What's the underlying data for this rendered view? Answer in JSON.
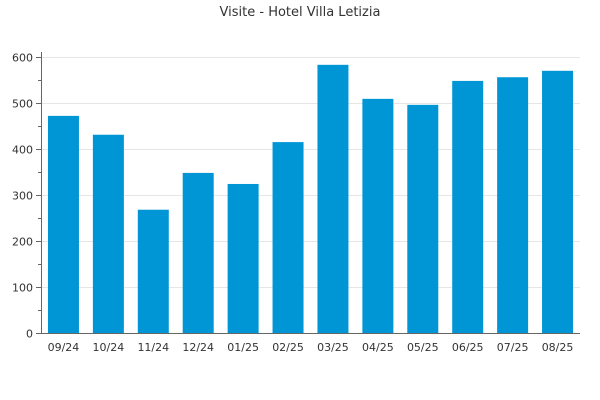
{
  "chart_data": {
    "type": "bar",
    "title": "Visite - Hotel Villa Letizia",
    "xlabel": "",
    "ylabel": "",
    "categories": [
      "09/24",
      "10/24",
      "11/24",
      "12/24",
      "01/25",
      "02/25",
      "03/25",
      "04/25",
      "05/25",
      "06/25",
      "07/25",
      "08/25"
    ],
    "values": [
      472,
      431,
      268,
      348,
      324,
      415,
      583,
      509,
      496,
      548,
      556,
      570
    ],
    "ylim": [
      0,
      600
    ],
    "yticks": [
      0,
      100,
      200,
      300,
      400,
      500,
      600
    ],
    "grid": true,
    "legend": "none",
    "bar_color": "#0095d5"
  }
}
